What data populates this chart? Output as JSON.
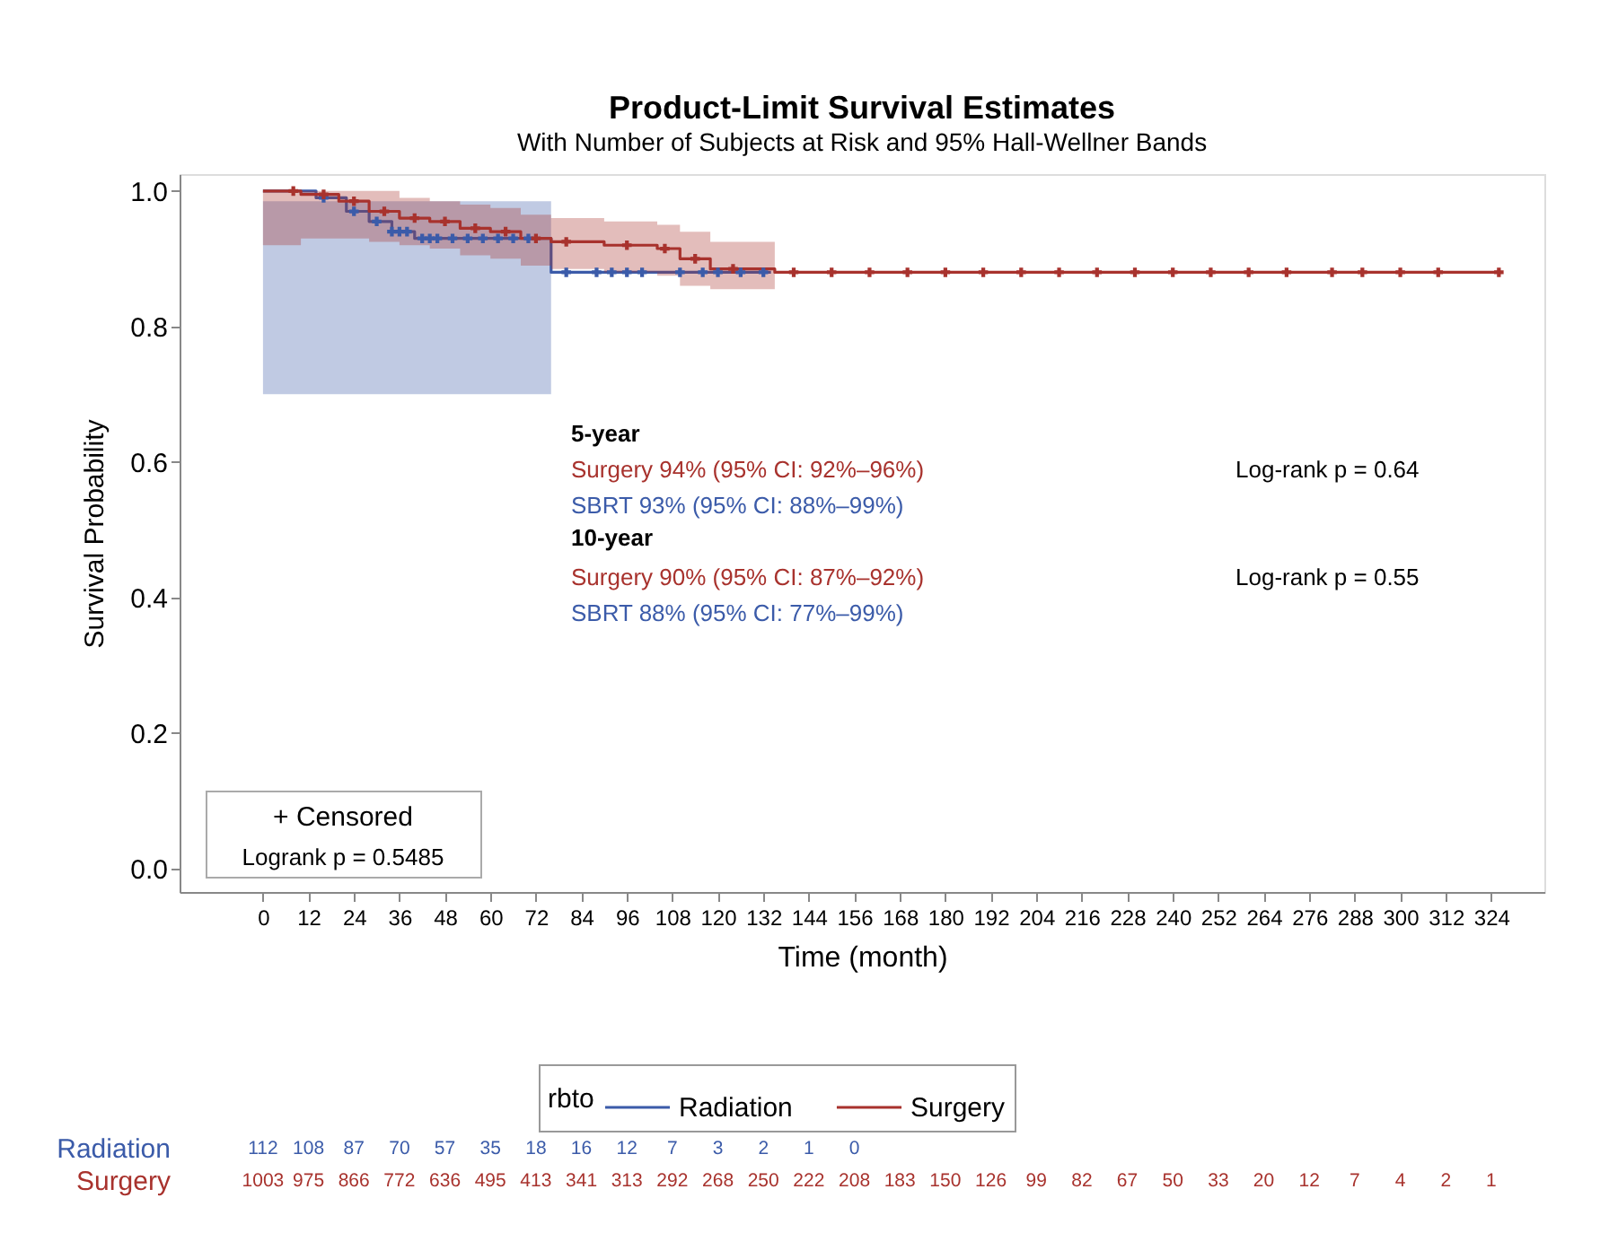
{
  "chart_data": {
    "type": "step",
    "title": "Product-Limit Survival Estimates",
    "subtitle": "With Number of Subjects at Risk and 95% Hall-Wellner Bands",
    "xlabel": "Time (month)",
    "ylabel": "Survival Probability",
    "legend_title": "rbto",
    "legend": "bottom",
    "grid": false,
    "line_style": "solid",
    "marker": "none",
    "xlim": [
      -22,
      338
    ],
    "xticks": [
      0,
      12,
      24,
      36,
      48,
      60,
      72,
      84,
      96,
      108,
      120,
      132,
      144,
      156,
      168,
      180,
      192,
      204,
      216,
      228,
      240,
      252,
      264,
      276,
      288,
      300,
      312,
      324
    ],
    "ylim": [
      -0.035,
      1.025
    ],
    "yticks": [
      {
        "value": 0,
        "label": "0.0"
      },
      0.2,
      0.4,
      0.6,
      0.8,
      {
        "value": 1,
        "label": "1.0"
      }
    ],
    "series": [
      {
        "name": "Radiation",
        "type": "step",
        "color": "#3b5ba9",
        "x": [
          0,
          14,
          22,
          28,
          34,
          40,
          76,
          134
        ],
        "values": [
          1.0,
          0.99,
          0.97,
          0.955,
          0.94,
          0.93,
          0.88,
          0.88
        ],
        "lower": [
          0.7,
          0.7,
          0.7,
          0.7,
          0.7,
          0.7,
          0.7,
          null
        ],
        "upper": [
          0.985,
          0.985,
          0.985,
          0.985,
          0.985,
          0.985,
          0.985,
          null
        ]
      },
      {
        "name": "Surgery",
        "type": "step",
        "color": "#a8322d",
        "x": [
          0,
          10,
          20,
          28,
          36,
          44,
          52,
          60,
          68,
          76,
          90,
          104,
          110,
          118,
          135,
          326
        ],
        "values": [
          1.0,
          0.995,
          0.985,
          0.97,
          0.96,
          0.955,
          0.945,
          0.94,
          0.93,
          0.925,
          0.92,
          0.915,
          0.9,
          0.885,
          0.88,
          0.88
        ],
        "lower": [
          0.92,
          0.93,
          0.93,
          0.925,
          0.92,
          0.915,
          0.905,
          0.9,
          0.89,
          0.885,
          0.88,
          0.875,
          0.86,
          0.855,
          0.85,
          null
        ],
        "upper": [
          1.0,
          1.0,
          1.0,
          1.0,
          0.99,
          0.985,
          0.98,
          0.975,
          0.965,
          0.96,
          0.955,
          0.95,
          0.94,
          0.925,
          0.92,
          null
        ]
      },
      {
        "type": "scatter",
        "marker": "cross",
        "color": "#3b5ba9",
        "x": [
          16,
          24,
          30,
          34,
          36,
          38,
          42,
          44,
          46,
          50,
          54,
          58,
          62,
          66,
          70,
          80,
          88,
          92,
          96,
          100,
          110,
          116,
          120,
          126,
          132
        ],
        "values": [
          0.99,
          0.97,
          0.955,
          0.94,
          0.94,
          0.94,
          0.93,
          0.93,
          0.93,
          0.93,
          0.93,
          0.93,
          0.93,
          0.93,
          0.93,
          0.88,
          0.88,
          0.88,
          0.88,
          0.88,
          0.88,
          0.88,
          0.88,
          0.88,
          0.88
        ]
      },
      {
        "type": "scatter",
        "marker": "cross",
        "color": "#a8322d",
        "x": [
          8,
          16,
          24,
          32,
          40,
          48,
          56,
          64,
          72,
          80,
          96,
          106,
          114,
          124,
          140,
          150,
          160,
          170,
          180,
          190,
          200,
          210,
          220,
          230,
          240,
          250,
          260,
          270,
          282,
          290,
          300,
          310,
          326
        ],
        "values": [
          1.0,
          0.995,
          0.985,
          0.97,
          0.96,
          0.955,
          0.945,
          0.94,
          0.93,
          0.925,
          0.92,
          0.915,
          0.9,
          0.885,
          0.88,
          0.88,
          0.88,
          0.88,
          0.88,
          0.88,
          0.88,
          0.88,
          0.88,
          0.88,
          0.88,
          0.88,
          0.88,
          0.88,
          0.88,
          0.88,
          0.88,
          0.88,
          0.88
        ]
      }
    ],
    "annotations": [
      "5-year",
      "Surgery 94% (95% CI: 92%–96%)",
      "SBRT 93% (95% CI: 88%–99%)",
      "Log-rank p = 0.64",
      "10-year",
      "Surgery 90% (95% CI: 87%–92%)",
      "SBRT 88% (95% CI: 77%–99%)",
      "Log-rank p = 0.55",
      "+ Censored",
      "Logrank p = 0.5485",
      "Radiation",
      "112 108 87 70 57 35 18 16 12 7 3 2 1 0",
      "Surgery",
      "1003 975 866 772 636 495 413 341 313 292 268 250 222 208 183 150 126 99 82 67 50 33 20 12 7 4 2 1"
    ]
  }
}
